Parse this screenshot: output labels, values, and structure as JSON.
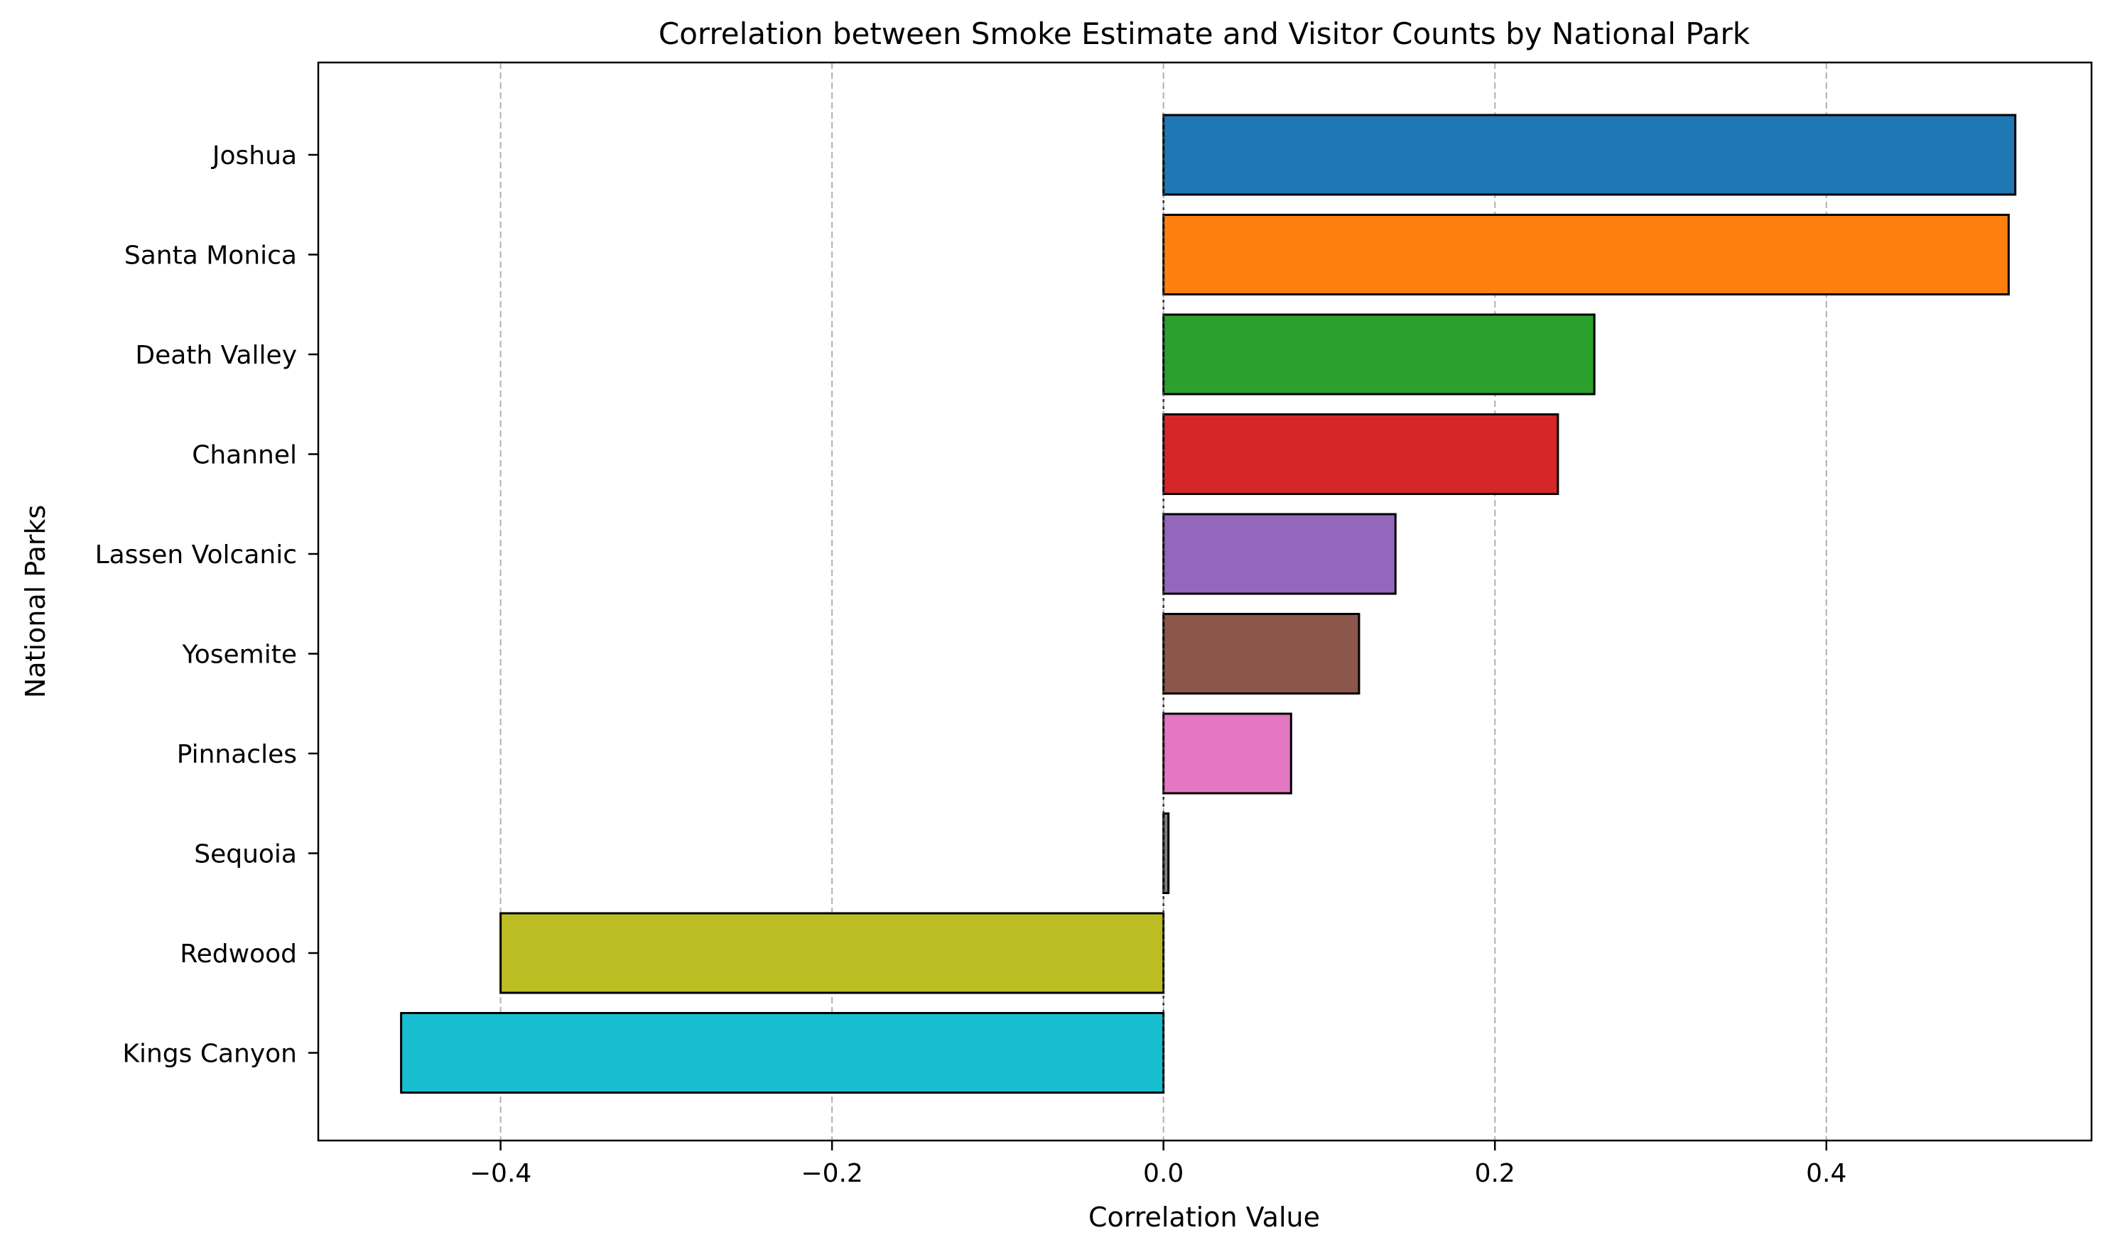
{
  "chart_data": {
    "type": "bar",
    "orientation": "horizontal",
    "title": "Correlation between Smoke Estimate and Visitor Counts by National Park",
    "xlabel": "Correlation Value",
    "ylabel": "National Parks",
    "xlim": [
      -0.51,
      0.56
    ],
    "xticks": [
      -0.4,
      -0.2,
      0.0,
      0.2,
      0.4
    ],
    "xtick_labels": [
      "−0.4",
      "−0.2",
      "0.0",
      "0.2",
      "0.4"
    ],
    "grid": "x, dashed",
    "categories": [
      "Joshua",
      "Santa Monica",
      "Death Valley",
      "Channel",
      "Lassen Volcanic",
      "Yosemite",
      "Pinnacles",
      "Sequoia",
      "Redwood",
      "Kings Canyon"
    ],
    "values": [
      0.514,
      0.51,
      0.26,
      0.238,
      0.14,
      0.118,
      0.077,
      0.003,
      -0.4,
      -0.46
    ],
    "colors": [
      "#1f77b4",
      "#ff7f0e",
      "#2ca02c",
      "#d62728",
      "#9467bd",
      "#8c564b",
      "#e377c2",
      "#7f7f7f",
      "#bcbd22",
      "#17becf"
    ]
  }
}
